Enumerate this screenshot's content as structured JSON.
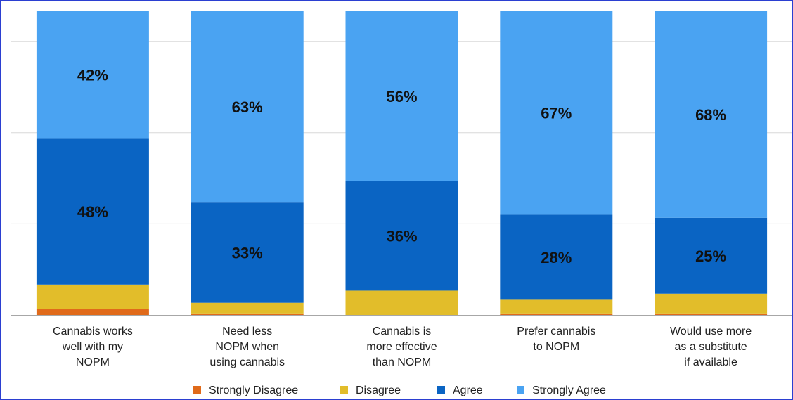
{
  "chart_data": {
    "type": "bar",
    "stacked": true,
    "categories": [
      [
        "Cannabis works",
        "well with my",
        "NOPM"
      ],
      [
        "Need less",
        "NOPM when",
        "using cannabis"
      ],
      [
        "Cannabis is",
        "more effective",
        "than NOPM"
      ],
      [
        "Prefer cannabis",
        "to NOPM"
      ],
      [
        "Would use more",
        "as a substitute",
        "if available"
      ]
    ],
    "series": [
      {
        "name": "Strongly Disagree",
        "color": "#e06a1a",
        "values": [
          2,
          0.5,
          0,
          0.5,
          0.5
        ]
      },
      {
        "name": "Disagree",
        "color": "#e2bd2a",
        "values": [
          8,
          3.5,
          8,
          4.5,
          6.5
        ]
      },
      {
        "name": "Agree",
        "color": "#0a64c3",
        "values": [
          48,
          33,
          36,
          28,
          25
        ]
      },
      {
        "name": "Strongly Agree",
        "color": "#4aa3f2",
        "values": [
          42,
          63,
          56,
          67,
          68
        ]
      }
    ],
    "data_labels": [
      {
        "series": "Agree",
        "labels": [
          "48%",
          "33%",
          "36%",
          "28%",
          "25%"
        ]
      },
      {
        "series": "Strongly Agree",
        "labels": [
          "42%",
          "63%",
          "56%",
          "67%",
          "68%"
        ]
      }
    ],
    "ylim": [
      0,
      100
    ],
    "grid": true,
    "legend": "bottom"
  }
}
